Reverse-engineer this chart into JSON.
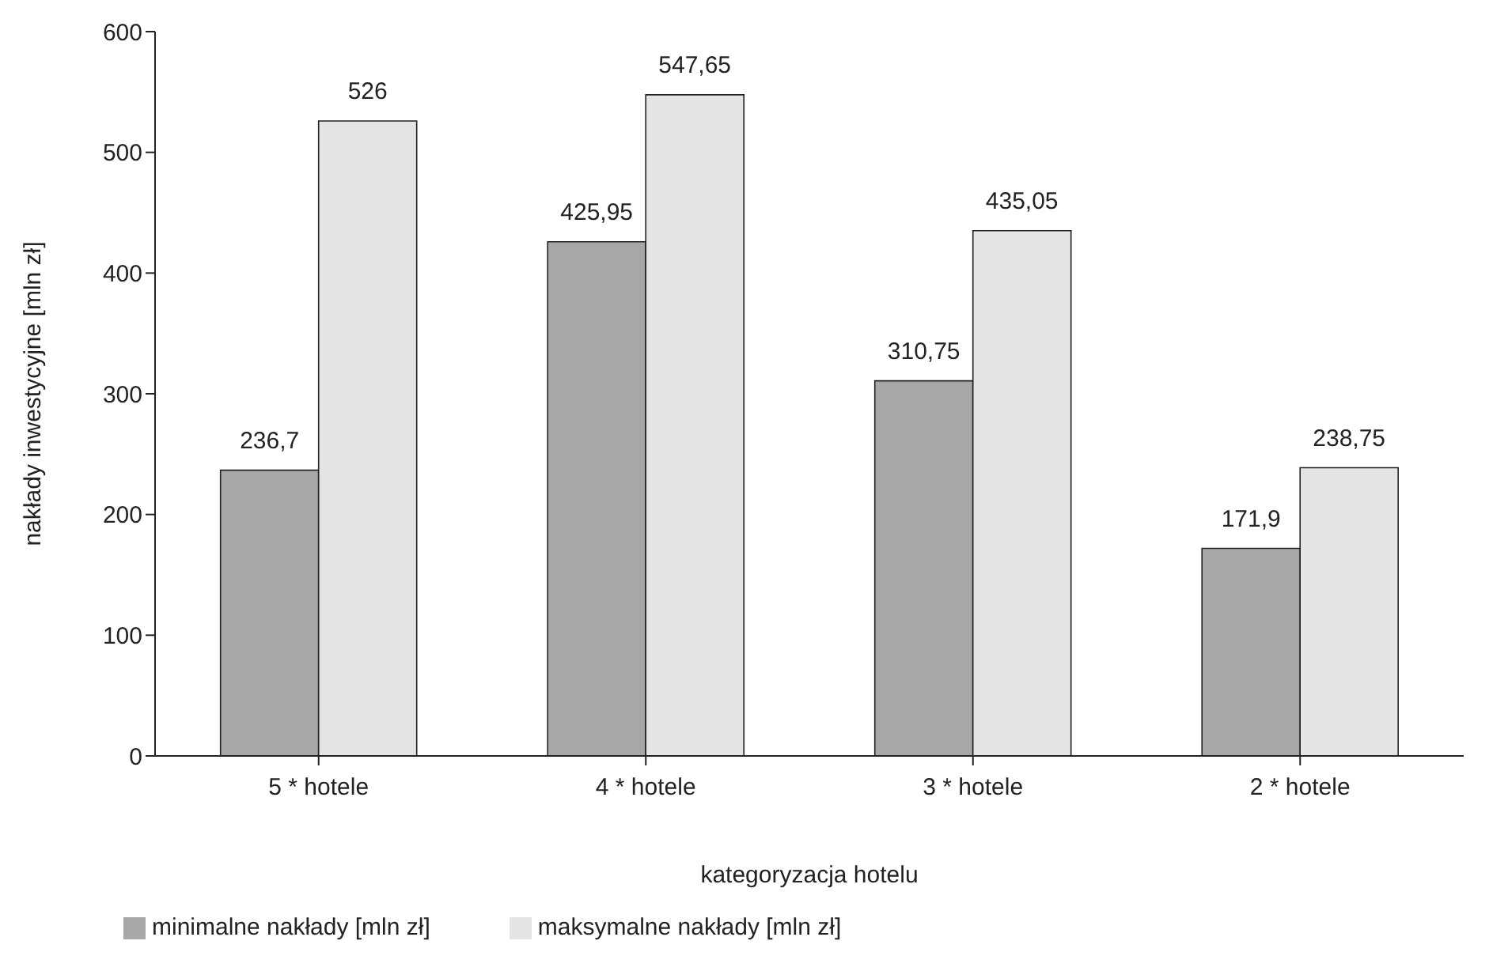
{
  "chart_data": {
    "type": "bar",
    "xlabel": "kategoryzacja hotelu",
    "ylabel": "nakłady inwestycyjne [mln zł]",
    "categories": [
      "5 * hotele",
      "4 * hotele",
      "3 * hotele",
      "2 * hotele"
    ],
    "series": [
      {
        "name": "minimalne nakłady [mln zł]",
        "color": "#a7a7a9",
        "values": [
          236.7,
          425.95,
          310.75,
          171.9
        ],
        "value_labels": [
          "236,7",
          "425,95",
          "310,75",
          "171,9"
        ]
      },
      {
        "name": "maksymalne nakłady [mln zł]",
        "color": "#e4e4e6",
        "values": [
          526,
          547.65,
          435.05,
          238.75
        ],
        "value_labels": [
          "526",
          "547,65",
          "435,05",
          "238,75"
        ]
      }
    ],
    "ylim": [
      0,
      600
    ],
    "yticks": [
      0,
      100,
      200,
      300,
      400,
      500,
      600
    ],
    "grid": false,
    "legend": "bottom left"
  }
}
